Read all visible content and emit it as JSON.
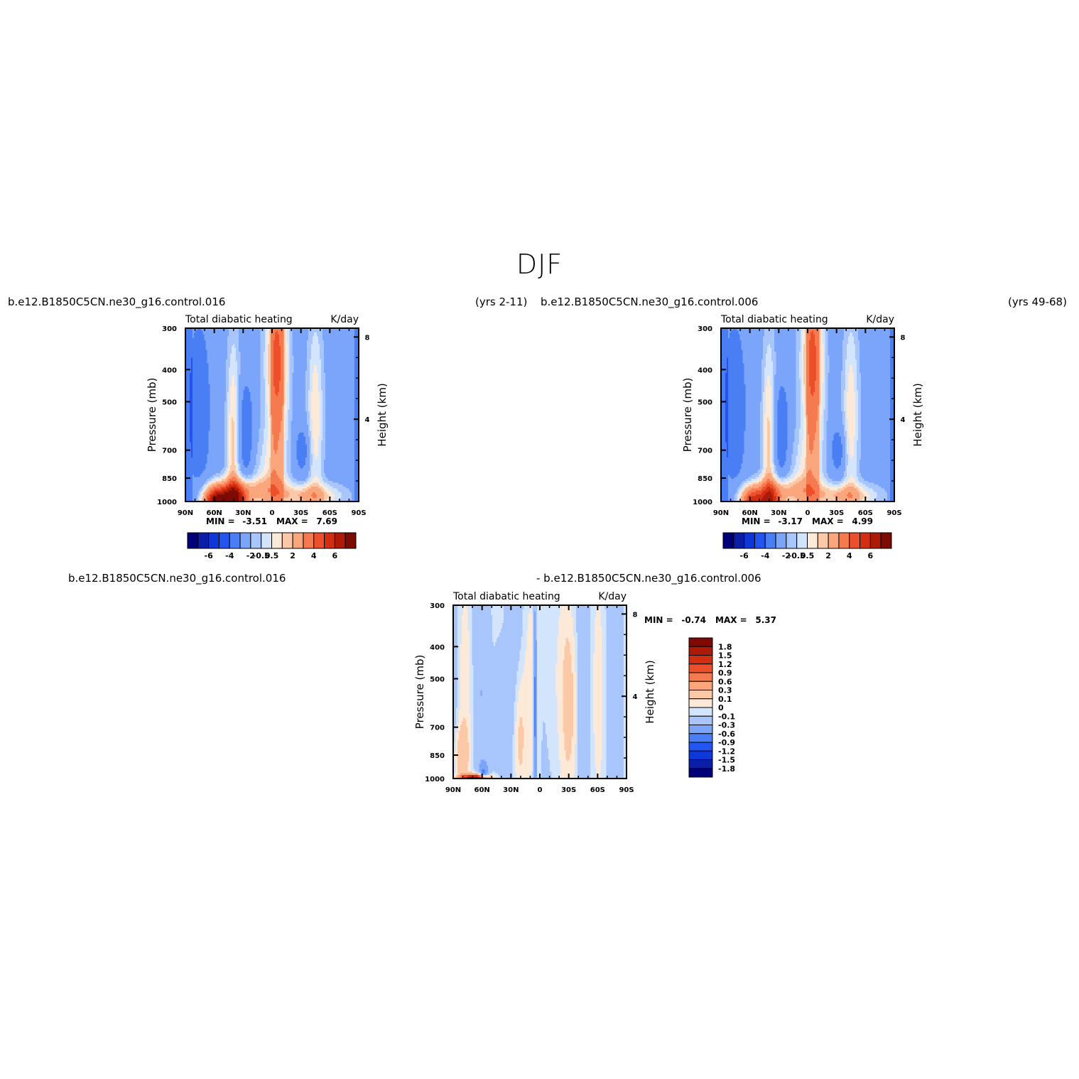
{
  "figure": {
    "season": "DJF"
  },
  "top_left": {
    "case_left": "b.e12.B1850C5CN.ne30_g16.control.016",
    "case_right": "(yrs 2-11)"
  },
  "top_right": {
    "case_left": "b.e12.B1850C5CN.ne30_g16.control.006",
    "case_right": "(yrs 49-68)"
  },
  "bottom": {
    "case_left": "b.e12.B1850C5CN.ne30_g16.control.016",
    "case_right": "- b.e12.B1850C5CN.ne30_g16.control.006"
  },
  "chart_data": [
    {
      "type": "heatmap",
      "panel": "top-left",
      "title": "Total diabatic heating",
      "units": "K/day",
      "ylabel": "Pressure (mb)",
      "ylabel_right": "Height (km)",
      "x_ticks": [
        "90N",
        "60N",
        "30N",
        "0",
        "30S",
        "60S",
        "90S"
      ],
      "y_ticks": [
        300,
        400,
        500,
        700,
        850,
        1000
      ],
      "y_ticks_right": [
        4,
        8
      ],
      "ylim": [
        1000,
        300
      ],
      "xlim": [
        "90N",
        "90S"
      ],
      "min_label": "MIN =",
      "min": "-3.51",
      "max_label": "MAX =",
      "max": "7.69",
      "colorbar_labels": [
        "-6",
        "-4",
        "-2",
        "-0.5",
        "0.5",
        "2",
        "4",
        "6"
      ]
    },
    {
      "type": "heatmap",
      "panel": "top-right",
      "title": "Total diabatic heating",
      "units": "K/day",
      "ylabel": "Pressure (mb)",
      "ylabel_right": "Height (km)",
      "x_ticks": [
        "90N",
        "60N",
        "30N",
        "0",
        "30S",
        "60S",
        "90S"
      ],
      "y_ticks": [
        300,
        400,
        500,
        700,
        850,
        1000
      ],
      "y_ticks_right": [
        4,
        8
      ],
      "ylim": [
        1000,
        300
      ],
      "xlim": [
        "90N",
        "90S"
      ],
      "min_label": "MIN =",
      "min": "-3.17",
      "max_label": "MAX =",
      "max": "4.99",
      "colorbar_labels": [
        "-6",
        "-4",
        "-2",
        "-0.5",
        "0.5",
        "2",
        "4",
        "6"
      ]
    },
    {
      "type": "heatmap",
      "panel": "bottom-difference",
      "title": "Total diabatic heating",
      "units": "K/day",
      "ylabel": "Pressure (mb)",
      "ylabel_right": "Height (km)",
      "x_ticks": [
        "90N",
        "60N",
        "30N",
        "0",
        "30S",
        "60S",
        "90S"
      ],
      "y_ticks": [
        300,
        400,
        500,
        700,
        850,
        1000
      ],
      "y_ticks_right": [
        4,
        8
      ],
      "ylim": [
        1000,
        300
      ],
      "xlim": [
        "90N",
        "90S"
      ],
      "min_label": "MIN =",
      "min": "-0.74",
      "max_label": "MAX =",
      "max": "5.37",
      "colorbar_labels": [
        "1.8",
        "1.5",
        "1.2",
        "0.9",
        "0.6",
        "0.3",
        "0.1",
        "0",
        "-0.1",
        "-0.3",
        "-0.6",
        "-0.9",
        "-1.2",
        "-1.5",
        "-1.8"
      ]
    }
  ],
  "palette": {
    "diverging": [
      "#00007a",
      "#0a1ea8",
      "#0d37d6",
      "#2255f0",
      "#4a7ef5",
      "#7ba5fa",
      "#a9c6fc",
      "#d2e5fd",
      "#fde9d8",
      "#fcc9a8",
      "#fba57c",
      "#f67a50",
      "#ec4f2a",
      "#d22f12",
      "#ad1a08",
      "#7d0a03"
    ]
  }
}
